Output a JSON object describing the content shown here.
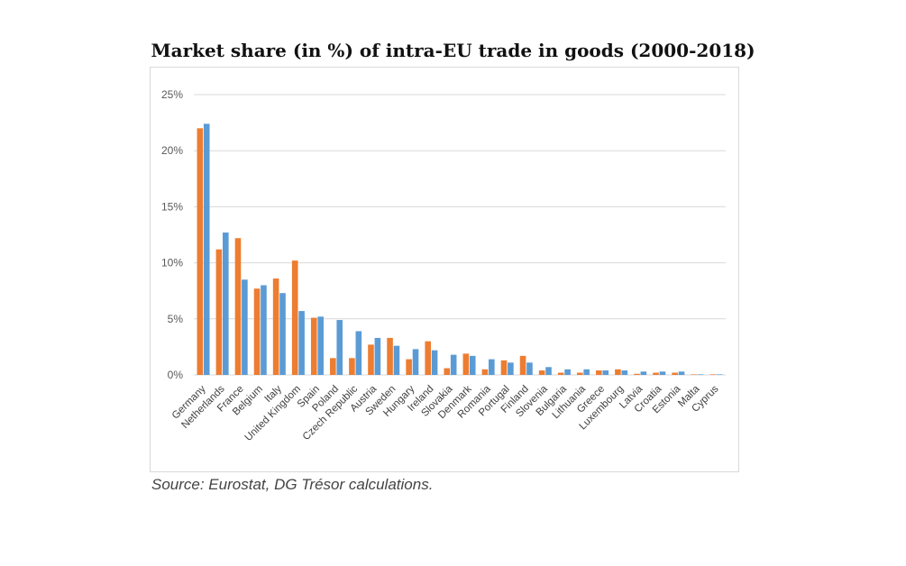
{
  "chart_data": {
    "type": "bar",
    "title": "Market share (in %) of intra-EU trade in goods (2000-2018)",
    "xlabel": "",
    "ylabel": "",
    "ylim": [
      0,
      25
    ],
    "yticks": [
      "0%",
      "5%",
      "10%",
      "15%",
      "20%",
      "25%"
    ],
    "grid": true,
    "legend": false,
    "categories": [
      "Germany",
      "Netherlands",
      "France",
      "Belgium",
      "Italy",
      "United Kingdom",
      "Spain",
      "Poland",
      "Czech Republic",
      "Austria",
      "Sweden",
      "Hungary",
      "Ireland",
      "Slovakia",
      "Denmark",
      "Romania",
      "Portugal",
      "Finland",
      "Slovenia",
      "Bulgaria",
      "Lithuania",
      "Greece",
      "Luxembourg",
      "Latvia",
      "Croatia",
      "Estonia",
      "Malta",
      "Cyprus"
    ],
    "series": [
      {
        "color": "#ED7D31",
        "values": [
          22.0,
          11.2,
          12.2,
          7.7,
          8.6,
          10.2,
          5.1,
          1.5,
          1.5,
          2.7,
          3.3,
          1.4,
          3.0,
          0.6,
          1.9,
          0.5,
          1.3,
          1.7,
          0.4,
          0.2,
          0.2,
          0.4,
          0.5,
          0.1,
          0.2,
          0.2,
          0.05,
          0.05
        ]
      },
      {
        "color": "#5B9BD5",
        "values": [
          22.4,
          12.7,
          8.5,
          8.0,
          7.3,
          5.7,
          5.2,
          4.9,
          3.9,
          3.3,
          2.6,
          2.3,
          2.2,
          1.8,
          1.7,
          1.4,
          1.1,
          1.1,
          0.7,
          0.5,
          0.5,
          0.4,
          0.4,
          0.3,
          0.3,
          0.3,
          0.05,
          0.05
        ]
      }
    ]
  },
  "source": "Source: Eurostat, DG Trésor calculations."
}
